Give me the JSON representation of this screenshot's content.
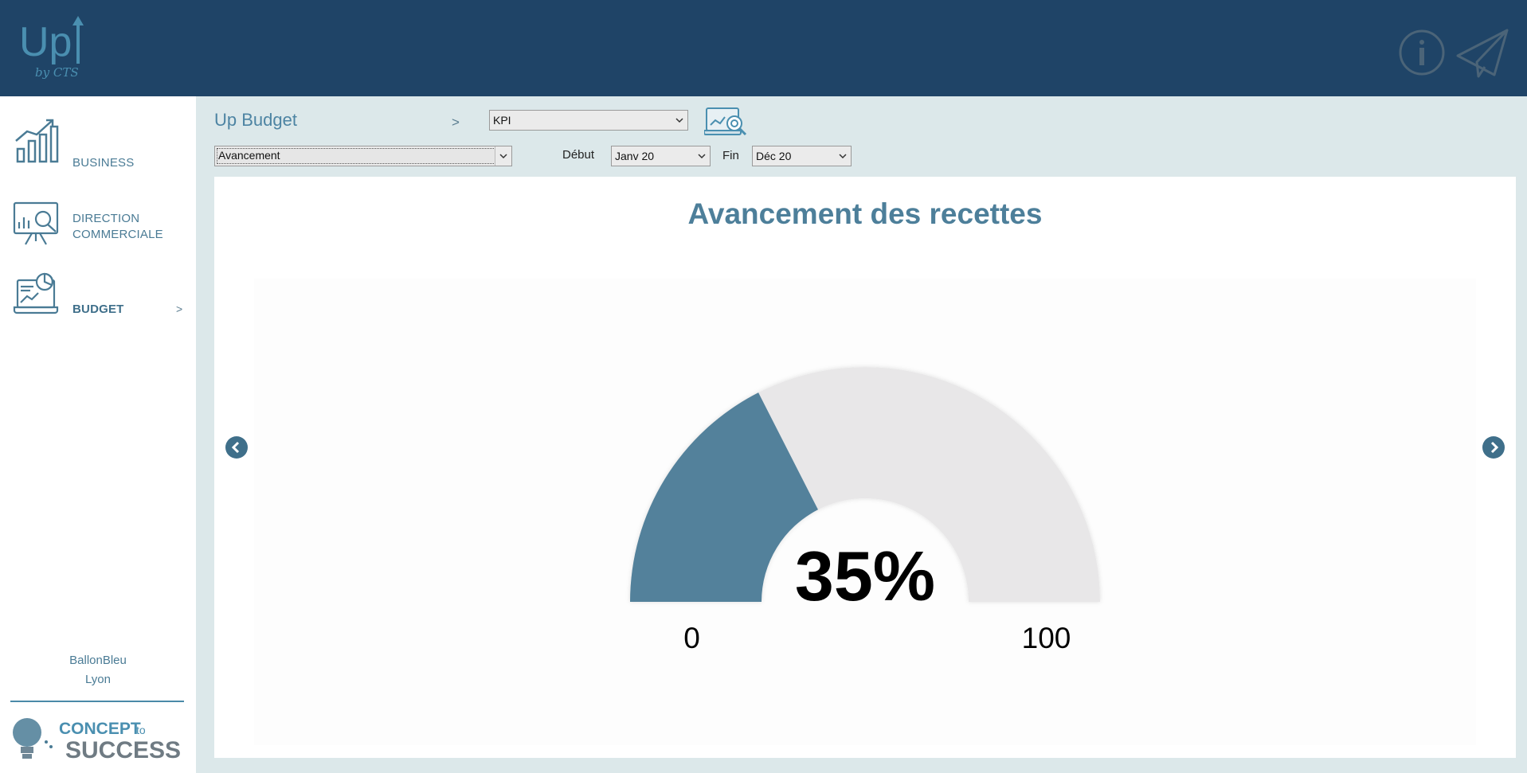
{
  "header": {
    "logo_text": "Up",
    "logo_subtext": "by CTS",
    "info_icon": "info-icon",
    "send_icon": "paper-plane-icon"
  },
  "sidebar": {
    "items": [
      {
        "label": "BUSINESS",
        "icon": "bar-chart-growth-icon",
        "active": false
      },
      {
        "label_line1": "DIRECTION",
        "label_line2": "COMMERCIALE",
        "icon": "presentation-analytics-icon",
        "active": false
      },
      {
        "label": "BUDGET",
        "icon": "laptop-dashboard-icon",
        "active": true,
        "arrow": ">"
      }
    ],
    "company_name": "BallonBleu",
    "company_city": "Lyon",
    "footer_logo_text_1": "CONCEPT",
    "footer_logo_text_2": "to",
    "footer_logo_text_3": "SUCCESS"
  },
  "toolbar": {
    "title": "Up Budget",
    "separator": ">",
    "kpi_select_value": "KPI",
    "report_select_value": "Avancement",
    "debut_label": "Début",
    "debut_value": "Janv 20",
    "fin_label": "Fin",
    "fin_value": "Déc 20",
    "dashboard_icon": "dashboard-search-icon"
  },
  "main": {
    "chart_title": "Avancement des recettes"
  },
  "colors": {
    "header_bg": "#1f4467",
    "accent": "#4d7f9a",
    "gauge_fill": "#53819b",
    "gauge_track": "#e8e7e8",
    "page_bg": "#dce8ea"
  },
  "chart_data": {
    "type": "gauge",
    "title": "Avancement des recettes",
    "value": 35,
    "value_label": "35%",
    "min": 0,
    "max": 100,
    "min_label": "0",
    "max_label": "100"
  }
}
